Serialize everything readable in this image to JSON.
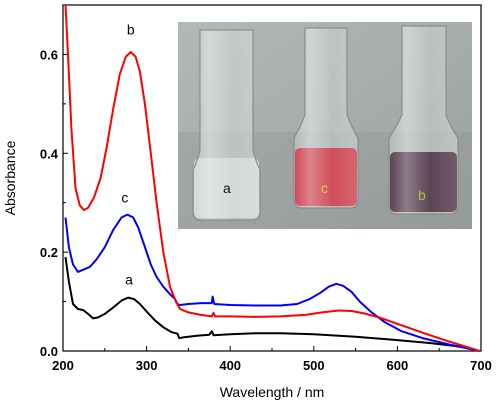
{
  "chart_data": {
    "type": "line",
    "xlabel": "Wavelength / nm",
    "ylabel": "Absorbance",
    "xlim": [
      200,
      700
    ],
    "ylim": [
      0,
      0.7
    ],
    "xticks": [
      200,
      300,
      400,
      500,
      600,
      700
    ],
    "yticks": [
      0.0,
      0.2,
      0.4,
      0.6
    ],
    "ytick_labels": [
      "0.0",
      "0.2",
      "0.4",
      "0.6"
    ],
    "grid": false,
    "legend": "none",
    "series": [
      {
        "name": "a",
        "color": "#000000",
        "label_at": [
          279,
          0.135
        ],
        "points": [
          [
            203,
            0.19
          ],
          [
            207,
            0.14
          ],
          [
            212,
            0.095
          ],
          [
            218,
            0.085
          ],
          [
            224,
            0.083
          ],
          [
            230,
            0.075
          ],
          [
            236,
            0.066
          ],
          [
            242,
            0.068
          ],
          [
            250,
            0.075
          ],
          [
            260,
            0.088
          ],
          [
            270,
            0.102
          ],
          [
            278,
            0.108
          ],
          [
            285,
            0.105
          ],
          [
            292,
            0.095
          ],
          [
            300,
            0.08
          ],
          [
            310,
            0.062
          ],
          [
            320,
            0.048
          ],
          [
            330,
            0.038
          ],
          [
            337,
            0.035
          ],
          [
            339,
            0.026
          ],
          [
            345,
            0.028
          ],
          [
            360,
            0.031
          ],
          [
            375,
            0.033
          ],
          [
            378,
            0.04
          ],
          [
            380,
            0.032
          ],
          [
            400,
            0.034
          ],
          [
            430,
            0.036
          ],
          [
            460,
            0.036
          ],
          [
            500,
            0.034
          ],
          [
            550,
            0.029
          ],
          [
            600,
            0.022
          ],
          [
            640,
            0.016
          ],
          [
            670,
            0.01
          ],
          [
            690,
            0.004
          ],
          [
            698,
            0.0
          ]
        ]
      },
      {
        "name": "b",
        "color": "#ff0000",
        "label_at": [
          281,
          0.64
        ],
        "points": [
          [
            203,
            0.7
          ],
          [
            206,
            0.6
          ],
          [
            210,
            0.45
          ],
          [
            215,
            0.33
          ],
          [
            220,
            0.295
          ],
          [
            225,
            0.285
          ],
          [
            230,
            0.29
          ],
          [
            237,
            0.31
          ],
          [
            245,
            0.35
          ],
          [
            252,
            0.41
          ],
          [
            260,
            0.49
          ],
          [
            268,
            0.56
          ],
          [
            275,
            0.595
          ],
          [
            281,
            0.605
          ],
          [
            287,
            0.595
          ],
          [
            292,
            0.565
          ],
          [
            298,
            0.5
          ],
          [
            305,
            0.4
          ],
          [
            312,
            0.3
          ],
          [
            320,
            0.2
          ],
          [
            328,
            0.13
          ],
          [
            335,
            0.1
          ],
          [
            340,
            0.085
          ],
          [
            350,
            0.078
          ],
          [
            365,
            0.073
          ],
          [
            378,
            0.07
          ],
          [
            380,
            0.077
          ],
          [
            382,
            0.07
          ],
          [
            400,
            0.07
          ],
          [
            430,
            0.069
          ],
          [
            460,
            0.07
          ],
          [
            490,
            0.073
          ],
          [
            510,
            0.078
          ],
          [
            530,
            0.082
          ],
          [
            545,
            0.081
          ],
          [
            560,
            0.076
          ],
          [
            580,
            0.067
          ],
          [
            600,
            0.055
          ],
          [
            630,
            0.037
          ],
          [
            660,
            0.02
          ],
          [
            685,
            0.007
          ],
          [
            698,
            0.0
          ]
        ]
      },
      {
        "name": "c",
        "color": "#0000ff",
        "label_at": [
          274,
          0.3
        ],
        "points": [
          [
            203,
            0.27
          ],
          [
            207,
            0.21
          ],
          [
            212,
            0.175
          ],
          [
            218,
            0.16
          ],
          [
            225,
            0.165
          ],
          [
            232,
            0.17
          ],
          [
            240,
            0.185
          ],
          [
            250,
            0.21
          ],
          [
            260,
            0.245
          ],
          [
            270,
            0.27
          ],
          [
            277,
            0.276
          ],
          [
            284,
            0.27
          ],
          [
            290,
            0.25
          ],
          [
            297,
            0.215
          ],
          [
            305,
            0.175
          ],
          [
            312,
            0.15
          ],
          [
            320,
            0.13
          ],
          [
            328,
            0.115
          ],
          [
            334,
            0.105
          ],
          [
            337,
            0.095
          ],
          [
            340,
            0.093
          ],
          [
            350,
            0.095
          ],
          [
            365,
            0.097
          ],
          [
            378,
            0.097
          ],
          [
            379,
            0.11
          ],
          [
            381,
            0.095
          ],
          [
            400,
            0.093
          ],
          [
            430,
            0.092
          ],
          [
            460,
            0.092
          ],
          [
            480,
            0.095
          ],
          [
            495,
            0.105
          ],
          [
            508,
            0.118
          ],
          [
            518,
            0.13
          ],
          [
            527,
            0.136
          ],
          [
            535,
            0.132
          ],
          [
            545,
            0.12
          ],
          [
            555,
            0.1
          ],
          [
            568,
            0.08
          ],
          [
            585,
            0.058
          ],
          [
            605,
            0.04
          ],
          [
            630,
            0.026
          ],
          [
            660,
            0.014
          ],
          [
            690,
            0.003
          ],
          [
            698,
            0.0
          ]
        ]
      }
    ]
  },
  "inset_photo": {
    "vials": [
      {
        "label": "a",
        "label_color": "#111111",
        "liquid_color": "#d6dbd6"
      },
      {
        "label": "c",
        "label_color": "#c8d84a",
        "liquid_color": "#cc3f4c"
      },
      {
        "label": "b",
        "label_color": "#a8c43a",
        "liquid_color": "#4f3546"
      }
    ]
  }
}
